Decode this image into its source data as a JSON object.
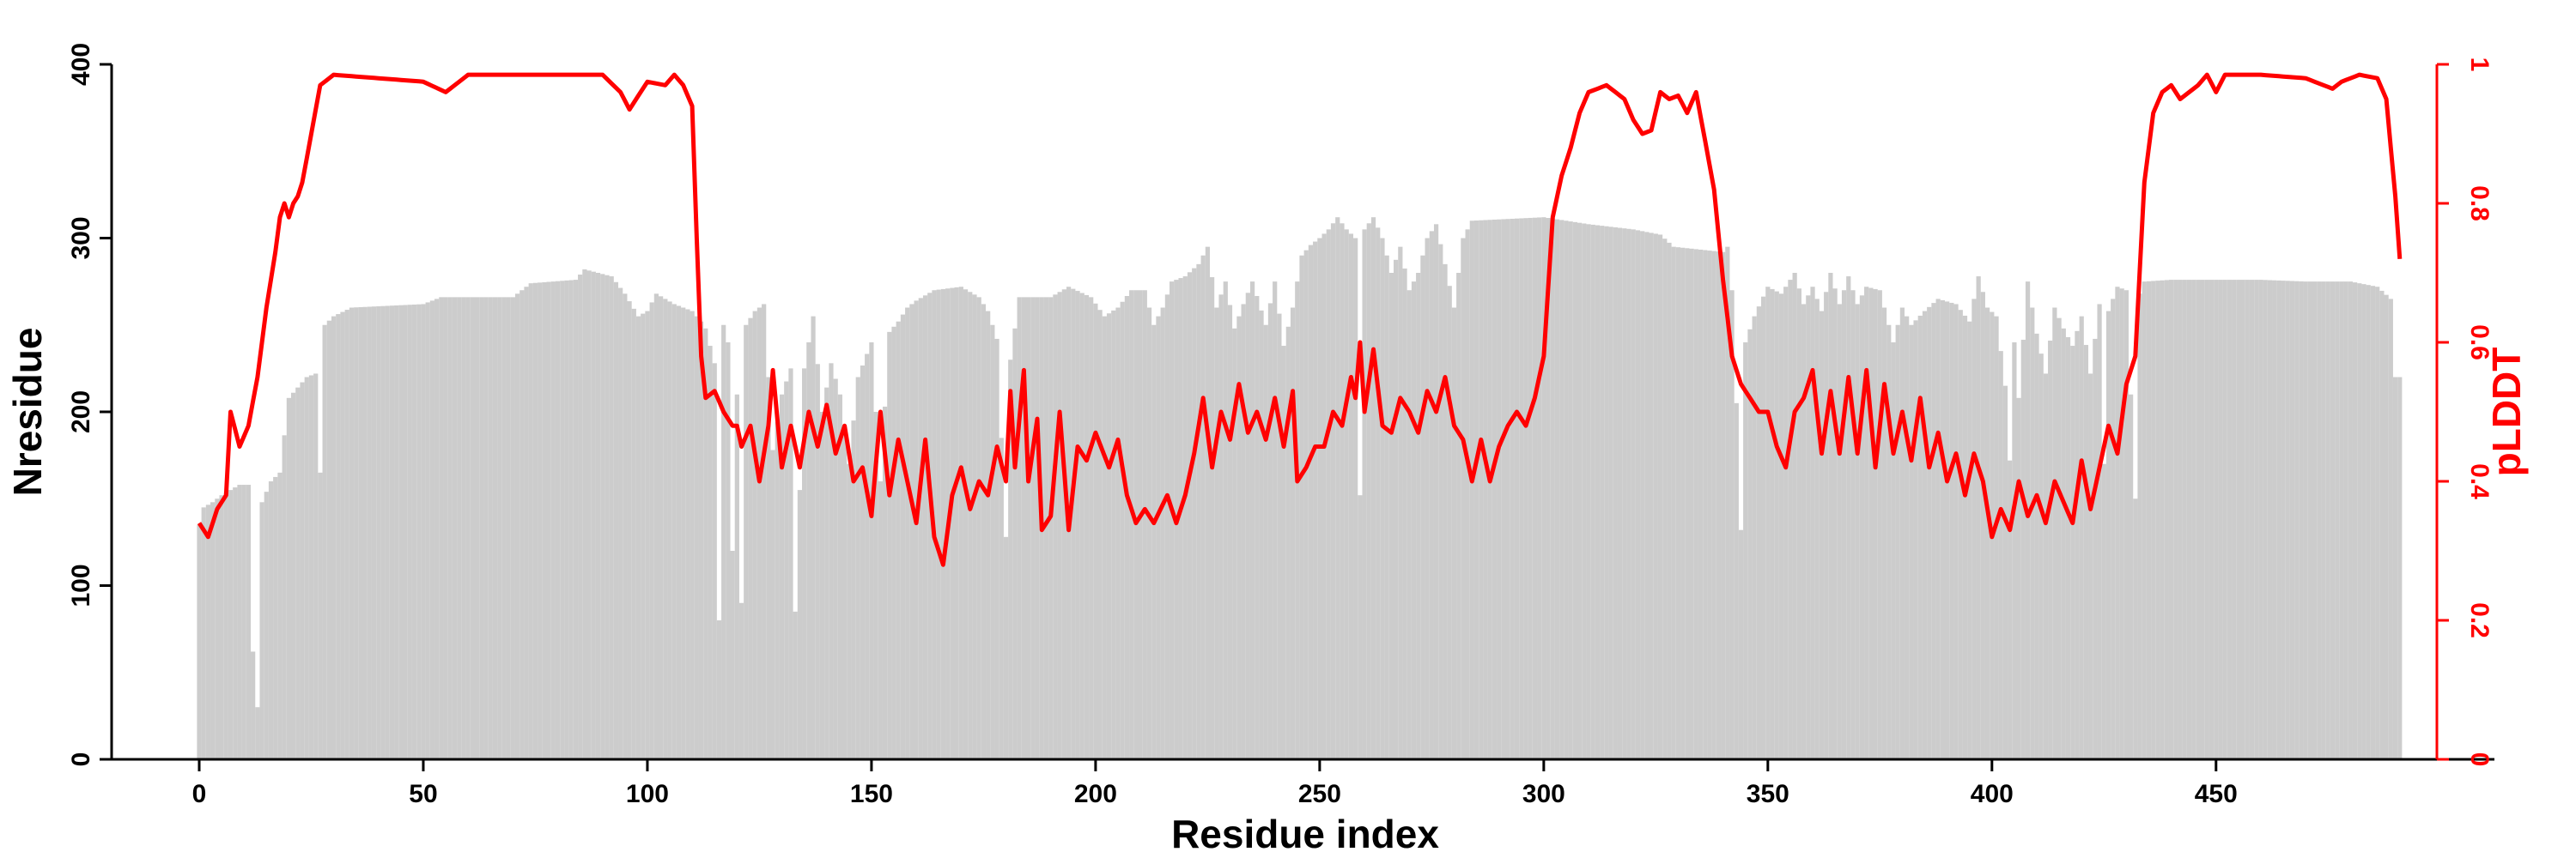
{
  "chart_data": {
    "type": "bar",
    "xlabel": "Residue index",
    "ylabel": "Nresidue",
    "y2label": "pLDDT",
    "xlim": [
      0,
      492
    ],
    "ylim": [
      0,
      400
    ],
    "y2lim": [
      0,
      1
    ],
    "x_ticks": [
      0,
      50,
      100,
      150,
      200,
      250,
      300,
      350,
      400,
      450
    ],
    "y_ticks": [
      0,
      100,
      200,
      300,
      400
    ],
    "y2_ticks": [
      0,
      0.2,
      0.4,
      0.6,
      0.8,
      1
    ],
    "y2_tick_labels": [
      "0",
      "0.2",
      "0.4",
      "0.6",
      "0.8",
      "1"
    ],
    "grid": false,
    "bar_color": "#cccccc",
    "line_color": "#ff0000",
    "nresidue_anchors": [
      [
        0,
        135
      ],
      [
        1,
        145
      ],
      [
        3,
        148
      ],
      [
        5,
        152
      ],
      [
        7,
        155
      ],
      [
        9,
        158
      ],
      [
        11,
        158
      ],
      [
        12,
        62
      ],
      [
        13,
        30
      ],
      [
        14,
        148
      ],
      [
        16,
        160
      ],
      [
        18,
        165
      ],
      [
        20,
        208
      ],
      [
        24,
        220
      ],
      [
        26,
        222
      ],
      [
        27,
        165
      ],
      [
        28,
        250
      ],
      [
        30,
        255
      ],
      [
        34,
        260
      ],
      [
        50,
        262
      ],
      [
        54,
        266
      ],
      [
        70,
        266
      ],
      [
        74,
        274
      ],
      [
        84,
        276
      ],
      [
        86,
        282
      ],
      [
        92,
        278
      ],
      [
        95,
        268
      ],
      [
        98,
        255
      ],
      [
        100,
        258
      ],
      [
        102,
        268
      ],
      [
        106,
        262
      ],
      [
        110,
        258
      ],
      [
        112,
        252
      ],
      [
        113,
        248
      ],
      [
        115,
        228
      ],
      [
        116,
        80
      ],
      [
        117,
        250
      ],
      [
        118,
        240
      ],
      [
        119,
        120
      ],
      [
        120,
        210
      ],
      [
        121,
        90
      ],
      [
        122,
        250
      ],
      [
        124,
        258
      ],
      [
        126,
        262
      ],
      [
        128,
        178
      ],
      [
        130,
        210
      ],
      [
        132,
        225
      ],
      [
        133,
        85
      ],
      [
        135,
        225
      ],
      [
        137,
        255
      ],
      [
        139,
        200
      ],
      [
        141,
        228
      ],
      [
        143,
        210
      ],
      [
        145,
        170
      ],
      [
        147,
        220
      ],
      [
        150,
        240
      ],
      [
        152,
        160
      ],
      [
        154,
        246
      ],
      [
        156,
        252
      ],
      [
        158,
        260
      ],
      [
        160,
        264
      ],
      [
        164,
        270
      ],
      [
        170,
        272
      ],
      [
        174,
        266
      ],
      [
        176,
        258
      ],
      [
        178,
        242
      ],
      [
        180,
        128
      ],
      [
        181,
        230
      ],
      [
        183,
        266
      ],
      [
        190,
        266
      ],
      [
        194,
        272
      ],
      [
        199,
        266
      ],
      [
        202,
        255
      ],
      [
        205,
        260
      ],
      [
        208,
        270
      ],
      [
        211,
        270
      ],
      [
        213,
        250
      ],
      [
        215,
        260
      ],
      [
        217,
        275
      ],
      [
        220,
        278
      ],
      [
        223,
        285
      ],
      [
        225,
        295
      ],
      [
        227,
        260
      ],
      [
        229,
        275
      ],
      [
        231,
        248
      ],
      [
        233,
        262
      ],
      [
        235,
        275
      ],
      [
        238,
        250
      ],
      [
        240,
        275
      ],
      [
        242,
        238
      ],
      [
        244,
        260
      ],
      [
        246,
        290
      ],
      [
        248,
        296
      ],
      [
        250,
        300
      ],
      [
        252,
        305
      ],
      [
        254,
        312
      ],
      [
        256,
        305
      ],
      [
        258,
        300
      ],
      [
        259,
        152
      ],
      [
        260,
        305
      ],
      [
        262,
        312
      ],
      [
        264,
        300
      ],
      [
        266,
        280
      ],
      [
        268,
        295
      ],
      [
        270,
        270
      ],
      [
        272,
        280
      ],
      [
        274,
        300
      ],
      [
        276,
        308
      ],
      [
        278,
        285
      ],
      [
        280,
        260
      ],
      [
        282,
        300
      ],
      [
        284,
        310
      ],
      [
        300,
        312
      ],
      [
        310,
        308
      ],
      [
        320,
        305
      ],
      [
        326,
        302
      ],
      [
        329,
        295
      ],
      [
        340,
        292
      ],
      [
        341,
        295
      ],
      [
        342,
        270
      ],
      [
        343,
        205
      ],
      [
        344,
        132
      ],
      [
        345,
        240
      ],
      [
        347,
        255
      ],
      [
        350,
        272
      ],
      [
        353,
        268
      ],
      [
        356,
        280
      ],
      [
        358,
        262
      ],
      [
        360,
        272
      ],
      [
        362,
        258
      ],
      [
        364,
        280
      ],
      [
        366,
        262
      ],
      [
        368,
        278
      ],
      [
        370,
        262
      ],
      [
        372,
        272
      ],
      [
        375,
        270
      ],
      [
        378,
        240
      ],
      [
        380,
        260
      ],
      [
        382,
        250
      ],
      [
        385,
        258
      ],
      [
        388,
        265
      ],
      [
        392,
        262
      ],
      [
        395,
        252
      ],
      [
        397,
        278
      ],
      [
        399,
        260
      ],
      [
        401,
        255
      ],
      [
        403,
        215
      ],
      [
        404,
        172
      ],
      [
        405,
        240
      ],
      [
        406,
        208
      ],
      [
        408,
        275
      ],
      [
        410,
        245
      ],
      [
        412,
        222
      ],
      [
        414,
        260
      ],
      [
        416,
        248
      ],
      [
        418,
        238
      ],
      [
        420,
        255
      ],
      [
        422,
        222
      ],
      [
        424,
        262
      ],
      [
        425,
        170
      ],
      [
        426,
        258
      ],
      [
        428,
        272
      ],
      [
        430,
        270
      ],
      [
        432,
        150
      ],
      [
        433,
        268
      ],
      [
        434,
        275
      ],
      [
        440,
        276
      ],
      [
        460,
        276
      ],
      [
        470,
        275
      ],
      [
        480,
        275
      ],
      [
        486,
        272
      ],
      [
        489,
        265
      ],
      [
        490,
        220
      ],
      [
        491,
        220
      ]
    ],
    "plddt_anchors": [
      [
        0,
        0.34
      ],
      [
        2,
        0.32
      ],
      [
        4,
        0.36
      ],
      [
        6,
        0.38
      ],
      [
        7,
        0.5
      ],
      [
        9,
        0.45
      ],
      [
        11,
        0.48
      ],
      [
        13,
        0.55
      ],
      [
        15,
        0.65
      ],
      [
        17,
        0.73
      ],
      [
        18,
        0.78
      ],
      [
        19,
        0.8
      ],
      [
        20,
        0.78
      ],
      [
        21,
        0.8
      ],
      [
        22,
        0.81
      ],
      [
        23,
        0.83
      ],
      [
        25,
        0.9
      ],
      [
        27,
        0.97
      ],
      [
        30,
        0.985
      ],
      [
        50,
        0.975
      ],
      [
        55,
        0.96
      ],
      [
        60,
        0.985
      ],
      [
        70,
        0.985
      ],
      [
        80,
        0.985
      ],
      [
        90,
        0.985
      ],
      [
        94,
        0.96
      ],
      [
        96,
        0.935
      ],
      [
        100,
        0.975
      ],
      [
        104,
        0.97
      ],
      [
        106,
        0.985
      ],
      [
        108,
        0.97
      ],
      [
        110,
        0.94
      ],
      [
        111,
        0.75
      ],
      [
        112,
        0.58
      ],
      [
        113,
        0.52
      ],
      [
        115,
        0.53
      ],
      [
        117,
        0.5
      ],
      [
        119,
        0.48
      ],
      [
        120,
        0.48
      ],
      [
        121,
        0.45
      ],
      [
        123,
        0.48
      ],
      [
        125,
        0.4
      ],
      [
        127,
        0.48
      ],
      [
        128,
        0.56
      ],
      [
        130,
        0.42
      ],
      [
        132,
        0.48
      ],
      [
        134,
        0.42
      ],
      [
        136,
        0.5
      ],
      [
        138,
        0.45
      ],
      [
        140,
        0.51
      ],
      [
        142,
        0.44
      ],
      [
        144,
        0.48
      ],
      [
        146,
        0.4
      ],
      [
        148,
        0.42
      ],
      [
        150,
        0.35
      ],
      [
        152,
        0.5
      ],
      [
        154,
        0.38
      ],
      [
        156,
        0.46
      ],
      [
        158,
        0.4
      ],
      [
        160,
        0.34
      ],
      [
        162,
        0.46
      ],
      [
        164,
        0.32
      ],
      [
        166,
        0.28
      ],
      [
        168,
        0.38
      ],
      [
        170,
        0.42
      ],
      [
        172,
        0.36
      ],
      [
        174,
        0.4
      ],
      [
        176,
        0.38
      ],
      [
        178,
        0.45
      ],
      [
        180,
        0.4
      ],
      [
        181,
        0.53
      ],
      [
        182,
        0.42
      ],
      [
        184,
        0.56
      ],
      [
        185,
        0.4
      ],
      [
        187,
        0.49
      ],
      [
        188,
        0.33
      ],
      [
        190,
        0.35
      ],
      [
        192,
        0.5
      ],
      [
        194,
        0.33
      ],
      [
        196,
        0.45
      ],
      [
        198,
        0.43
      ],
      [
        200,
        0.47
      ],
      [
        203,
        0.42
      ],
      [
        205,
        0.46
      ],
      [
        207,
        0.38
      ],
      [
        209,
        0.34
      ],
      [
        211,
        0.36
      ],
      [
        213,
        0.34
      ],
      [
        216,
        0.38
      ],
      [
        218,
        0.34
      ],
      [
        220,
        0.38
      ],
      [
        222,
        0.44
      ],
      [
        224,
        0.52
      ],
      [
        226,
        0.42
      ],
      [
        228,
        0.5
      ],
      [
        230,
        0.46
      ],
      [
        232,
        0.54
      ],
      [
        234,
        0.47
      ],
      [
        236,
        0.5
      ],
      [
        238,
        0.46
      ],
      [
        240,
        0.52
      ],
      [
        242,
        0.45
      ],
      [
        244,
        0.53
      ],
      [
        245,
        0.4
      ],
      [
        247,
        0.42
      ],
      [
        249,
        0.45
      ],
      [
        251,
        0.45
      ],
      [
        253,
        0.5
      ],
      [
        255,
        0.48
      ],
      [
        257,
        0.55
      ],
      [
        258,
        0.52
      ],
      [
        259,
        0.6
      ],
      [
        260,
        0.5
      ],
      [
        262,
        0.59
      ],
      [
        264,
        0.48
      ],
      [
        266,
        0.47
      ],
      [
        268,
        0.52
      ],
      [
        270,
        0.5
      ],
      [
        272,
        0.47
      ],
      [
        274,
        0.53
      ],
      [
        276,
        0.5
      ],
      [
        278,
        0.55
      ],
      [
        280,
        0.48
      ],
      [
        282,
        0.46
      ],
      [
        284,
        0.4
      ],
      [
        286,
        0.46
      ],
      [
        288,
        0.4
      ],
      [
        290,
        0.45
      ],
      [
        292,
        0.48
      ],
      [
        294,
        0.5
      ],
      [
        296,
        0.48
      ],
      [
        298,
        0.52
      ],
      [
        300,
        0.58
      ],
      [
        302,
        0.78
      ],
      [
        304,
        0.84
      ],
      [
        306,
        0.88
      ],
      [
        308,
        0.93
      ],
      [
        310,
        0.96
      ],
      [
        314,
        0.97
      ],
      [
        318,
        0.95
      ],
      [
        320,
        0.92
      ],
      [
        322,
        0.9
      ],
      [
        324,
        0.905
      ],
      [
        326,
        0.96
      ],
      [
        328,
        0.95
      ],
      [
        330,
        0.955
      ],
      [
        332,
        0.93
      ],
      [
        334,
        0.96
      ],
      [
        336,
        0.89
      ],
      [
        338,
        0.82
      ],
      [
        340,
        0.69
      ],
      [
        342,
        0.58
      ],
      [
        344,
        0.54
      ],
      [
        346,
        0.52
      ],
      [
        348,
        0.5
      ],
      [
        350,
        0.5
      ],
      [
        352,
        0.45
      ],
      [
        354,
        0.42
      ],
      [
        356,
        0.5
      ],
      [
        358,
        0.52
      ],
      [
        360,
        0.56
      ],
      [
        362,
        0.44
      ],
      [
        364,
        0.53
      ],
      [
        366,
        0.44
      ],
      [
        368,
        0.55
      ],
      [
        370,
        0.44
      ],
      [
        372,
        0.56
      ],
      [
        374,
        0.42
      ],
      [
        376,
        0.54
      ],
      [
        378,
        0.44
      ],
      [
        380,
        0.5
      ],
      [
        382,
        0.43
      ],
      [
        384,
        0.52
      ],
      [
        386,
        0.42
      ],
      [
        388,
        0.47
      ],
      [
        390,
        0.4
      ],
      [
        392,
        0.44
      ],
      [
        394,
        0.38
      ],
      [
        396,
        0.44
      ],
      [
        398,
        0.4
      ],
      [
        400,
        0.32
      ],
      [
        402,
        0.36
      ],
      [
        404,
        0.33
      ],
      [
        406,
        0.4
      ],
      [
        408,
        0.35
      ],
      [
        410,
        0.38
      ],
      [
        412,
        0.34
      ],
      [
        414,
        0.4
      ],
      [
        416,
        0.37
      ],
      [
        418,
        0.34
      ],
      [
        420,
        0.43
      ],
      [
        422,
        0.36
      ],
      [
        424,
        0.42
      ],
      [
        426,
        0.48
      ],
      [
        428,
        0.44
      ],
      [
        430,
        0.54
      ],
      [
        432,
        0.58
      ],
      [
        434,
        0.83
      ],
      [
        436,
        0.93
      ],
      [
        438,
        0.96
      ],
      [
        440,
        0.97
      ],
      [
        442,
        0.95
      ],
      [
        444,
        0.96
      ],
      [
        446,
        0.97
      ],
      [
        448,
        0.985
      ],
      [
        450,
        0.96
      ],
      [
        452,
        0.985
      ],
      [
        460,
        0.985
      ],
      [
        470,
        0.98
      ],
      [
        476,
        0.965
      ],
      [
        478,
        0.975
      ],
      [
        482,
        0.985
      ],
      [
        486,
        0.98
      ],
      [
        488,
        0.95
      ],
      [
        490,
        0.81
      ],
      [
        491,
        0.72
      ]
    ]
  }
}
